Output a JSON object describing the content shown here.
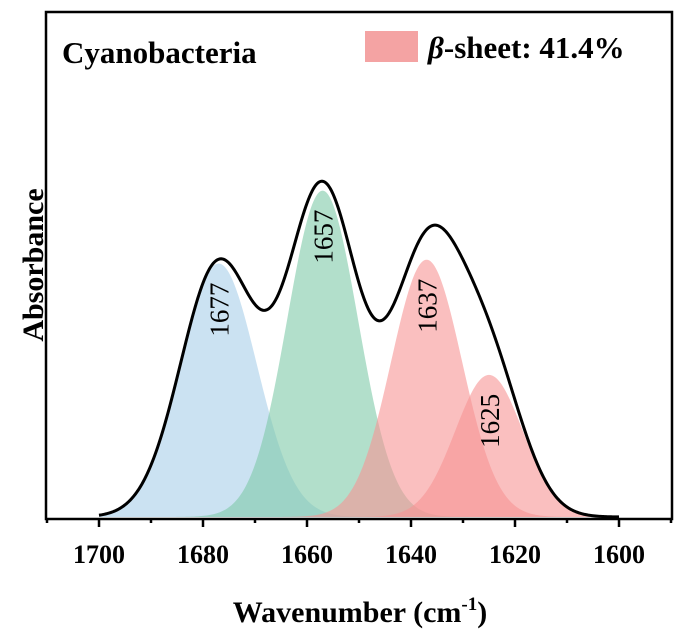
{
  "chart_data": {
    "type": "area",
    "title": "Cyanobacteria",
    "xlabel": "Wavenumber (cm-1)",
    "xlabel_main": "Wavenumber (cm",
    "xlabel_sup": "-1",
    "xlabel_close": ")",
    "ylabel": "Absorbance",
    "xlim": [
      1710,
      1590
    ],
    "x_reversed": true,
    "ylim": [
      0,
      1.0
    ],
    "x_ticks": [
      1700,
      1680,
      1660,
      1640,
      1620,
      1600
    ],
    "x_tick_labels": [
      "1700",
      "1680",
      "1660",
      "1640",
      "1620",
      "1600"
    ],
    "legend": {
      "greek": "β",
      "text": "-sheet: 41.4%",
      "color": "#f4a3a3",
      "placement": "top-right"
    },
    "series": [
      {
        "label": "1677",
        "center": 1677,
        "amplitude": 0.66,
        "sigma": 7.3,
        "color": "#a8cfea"
      },
      {
        "label": "1657",
        "center": 1657,
        "amplitude": 0.85,
        "sigma": 6.8,
        "color": "#7fcaa8"
      },
      {
        "label": "1637",
        "center": 1637,
        "amplitude": 0.67,
        "sigma": 6.8,
        "color": "#f79595"
      },
      {
        "label": "1625",
        "center": 1625,
        "amplitude": 0.37,
        "sigma": 6.5,
        "color": "#f79595"
      }
    ],
    "envelope": {
      "color": "#000000",
      "x_range": [
        1700,
        1600
      ]
    }
  }
}
